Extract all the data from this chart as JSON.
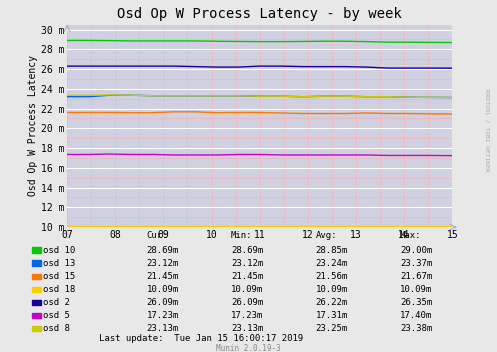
{
  "title": "Osd Op W Process Latency - by week",
  "ylabel": "Osd Op W Process Latency",
  "watermark": "RRDTOOL / TOBI OETIKER",
  "munin_version": "Munin 2.0.19-3",
  "last_update": "Last update:  Tue Jan 15 16:00:17 2019",
  "xlim": [
    0,
    8
  ],
  "ylim": [
    10,
    30
  ],
  "yticks": [
    10,
    12,
    14,
    16,
    18,
    20,
    22,
    24,
    26,
    28,
    30
  ],
  "xtick_labels": [
    "07",
    "08",
    "09",
    "10",
    "11",
    "12",
    "13",
    "14",
    "15"
  ],
  "background_color": "#e8e8e8",
  "plot_bg_color": "#d0d0e0",
  "series": {
    "osd 10": {
      "color": "#00cc00",
      "cur": 28.69,
      "min": 28.69,
      "avg": 28.85,
      "max": 29.0,
      "values": [
        28.9,
        28.9,
        28.88,
        28.85,
        28.85,
        28.85,
        28.85,
        28.82,
        28.8,
        28.78,
        28.78,
        28.8,
        28.82,
        28.82,
        28.78,
        28.72,
        28.72,
        28.7,
        28.69
      ]
    },
    "osd 13": {
      "color": "#0066ee",
      "cur": 23.12,
      "min": 23.12,
      "avg": 23.24,
      "max": 23.37,
      "values": [
        23.2,
        23.2,
        23.35,
        23.35,
        23.3,
        23.3,
        23.3,
        23.3,
        23.3,
        23.25,
        23.25,
        23.2,
        23.25,
        23.25,
        23.2,
        23.2,
        23.15,
        23.13,
        23.12
      ]
    },
    "osd 15": {
      "color": "#ff7700",
      "cur": 21.45,
      "min": 21.45,
      "avg": 21.56,
      "max": 21.67,
      "values": [
        21.6,
        21.6,
        21.6,
        21.58,
        21.58,
        21.67,
        21.67,
        21.58,
        21.6,
        21.6,
        21.55,
        21.5,
        21.5,
        21.5,
        21.55,
        21.5,
        21.5,
        21.46,
        21.45
      ]
    },
    "osd 18": {
      "color": "#ffcc00",
      "cur": 10.09,
      "min": 10.09,
      "avg": 10.09,
      "max": 10.09,
      "values": [
        10.09,
        10.09,
        10.09,
        10.09,
        10.09,
        10.09,
        10.09,
        10.09,
        10.09,
        10.09,
        10.09,
        10.09,
        10.09,
        10.09,
        10.09,
        10.09,
        10.09,
        10.09,
        10.09
      ]
    },
    "osd 2": {
      "color": "#1a0099",
      "cur": 26.09,
      "min": 26.09,
      "avg": 26.22,
      "max": 26.35,
      "values": [
        26.3,
        26.3,
        26.3,
        26.3,
        26.3,
        26.3,
        26.25,
        26.2,
        26.2,
        26.3,
        26.3,
        26.25,
        26.25,
        26.25,
        26.2,
        26.1,
        26.1,
        26.1,
        26.09
      ]
    },
    "osd 5": {
      "color": "#cc00cc",
      "cur": 17.23,
      "min": 17.23,
      "avg": 17.31,
      "max": 17.4,
      "values": [
        17.35,
        17.35,
        17.4,
        17.35,
        17.35,
        17.3,
        17.3,
        17.3,
        17.35,
        17.35,
        17.3,
        17.3,
        17.3,
        17.3,
        17.3,
        17.25,
        17.25,
        17.25,
        17.23
      ]
    },
    "osd 8": {
      "color": "#cccc00",
      "cur": 23.13,
      "min": 23.13,
      "avg": 23.25,
      "max": 23.38,
      "values": [
        23.35,
        23.35,
        23.38,
        23.35,
        23.3,
        23.3,
        23.3,
        23.3,
        23.3,
        23.25,
        23.25,
        23.2,
        23.25,
        23.25,
        23.2,
        23.2,
        23.15,
        23.14,
        23.13
      ]
    }
  },
  "legend_order": [
    "osd 10",
    "osd 13",
    "osd 15",
    "osd 18",
    "osd 2",
    "osd 5",
    "osd 8"
  ]
}
